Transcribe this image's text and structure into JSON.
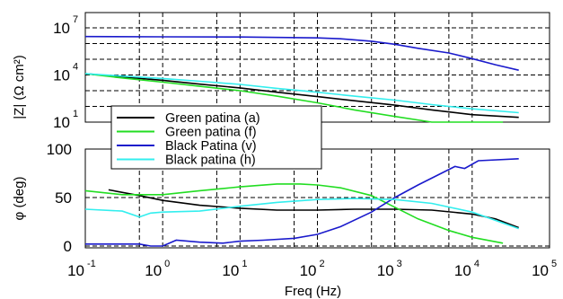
{
  "chart_data": [
    {
      "type": "line",
      "panel": "impedance magnitude",
      "xscale": "log",
      "yscale": "log",
      "xlim": [
        0.1,
        100000
      ],
      "ylim": [
        1,
        10000000
      ],
      "ylabel": "|Z| (Ω cm²)",
      "ytick_labels": [
        {
          "base": "10",
          "exp": "7"
        },
        {
          "base": "10",
          "exp": "4"
        },
        {
          "base": "10",
          "exp": "1"
        }
      ],
      "grid": true,
      "series": [
        {
          "name": "Green patina (a)",
          "color": "#000000",
          "x": [
            0.1,
            0.3,
            1,
            3,
            10,
            30,
            100,
            300,
            1000,
            3000,
            10000,
            40000
          ],
          "y": [
            12000,
            7500,
            4600,
            2600,
            1500,
            800,
            420,
            230,
            120,
            60,
            30,
            20
          ]
        },
        {
          "name": "Green patina (f)",
          "color": "#22dd22",
          "x": [
            0.1,
            0.3,
            1,
            3,
            10,
            30,
            100,
            300,
            1000,
            3000,
            10000,
            25000
          ],
          "y": [
            12000,
            6500,
            3500,
            1900,
            1000,
            450,
            170,
            60,
            23,
            10,
            7,
            7
          ]
        },
        {
          "name": "Black Patina (v)",
          "color": "#1a1acc",
          "x": [
            0.1,
            1,
            10,
            100,
            200,
            500,
            1000,
            2000,
            5000,
            10000,
            20000,
            40000
          ],
          "y": [
            2800000,
            2700000,
            2600000,
            2300000,
            2000000,
            1400000,
            900000,
            500000,
            250000,
            110000,
            45000,
            20000
          ]
        },
        {
          "name": "Black patina (h)",
          "color": "#33eeee",
          "x": [
            0.1,
            0.3,
            1,
            3,
            10,
            30,
            100,
            300,
            1000,
            3000,
            10000,
            40000
          ],
          "y": [
            12000,
            8500,
            6000,
            4000,
            2500,
            1400,
            800,
            450,
            250,
            130,
            70,
            40
          ]
        }
      ]
    },
    {
      "type": "line",
      "panel": "phase angle",
      "xscale": "log",
      "xlim": [
        0.1,
        100000
      ],
      "ylim": [
        0,
        100
      ],
      "yticks": [
        0,
        50,
        100
      ],
      "xlabel": "Freq (Hz)",
      "xtick_labels": [
        {
          "base": "10",
          "exp": "-1"
        },
        {
          "base": "10",
          "exp": "0"
        },
        {
          "base": "10",
          "exp": "1"
        },
        {
          "base": "10",
          "exp": "2"
        },
        {
          "base": "10",
          "exp": "3"
        },
        {
          "base": "10",
          "exp": "4"
        },
        {
          "base": "10",
          "exp": "5"
        }
      ],
      "ylabel": "φ (deg)",
      "grid": true,
      "series": [
        {
          "name": "Green patina (a)",
          "color": "#000000",
          "x": [
            0.2,
            0.5,
            1,
            3,
            10,
            30,
            100,
            300,
            1000,
            3000,
            10000,
            20000,
            40000
          ],
          "y": [
            58,
            52,
            47,
            42,
            39,
            37,
            37,
            38,
            38,
            37,
            33,
            28,
            19
          ]
        },
        {
          "name": "Green patina (f)",
          "color": "#22dd22",
          "x": [
            0.1,
            0.3,
            1,
            3,
            10,
            30,
            60,
            100,
            200,
            500,
            1000,
            2000,
            5000,
            10000,
            25000
          ],
          "y": [
            57,
            53,
            53,
            57,
            61,
            64,
            64,
            63,
            60,
            52,
            40,
            28,
            16,
            9,
            3
          ]
        },
        {
          "name": "Black Patina (v)",
          "color": "#1a1acc",
          "x": [
            0.1,
            0.3,
            0.5,
            0.7,
            1,
            1.5,
            3,
            6,
            10,
            20,
            50,
            100,
            200,
            500,
            1000,
            2000,
            4000,
            6000,
            8000,
            12000,
            40000
          ],
          "y": [
            2,
            2,
            2,
            0,
            0,
            6,
            4,
            3,
            5,
            6,
            8,
            12,
            20,
            35,
            50,
            63,
            75,
            82,
            80,
            88,
            90
          ]
        },
        {
          "name": "Black patina (h)",
          "color": "#33eeee",
          "x": [
            0.1,
            0.3,
            0.5,
            0.7,
            1,
            3,
            10,
            30,
            100,
            300,
            1000,
            3000,
            10000,
            40000
          ],
          "y": [
            38,
            36,
            30,
            34,
            35,
            36,
            41,
            45,
            48,
            49,
            48,
            44,
            35,
            18
          ]
        }
      ]
    }
  ],
  "legend": [
    {
      "name": "Green patina (a)",
      "color": "#000000"
    },
    {
      "name": "Green patina (f)",
      "color": "#22dd22"
    },
    {
      "name": "Black Patina (v)",
      "color": "#1a1acc"
    },
    {
      "name": "Black patina (h)",
      "color": "#33eeee"
    }
  ],
  "legend_placement": "center-left, straddling both panels"
}
